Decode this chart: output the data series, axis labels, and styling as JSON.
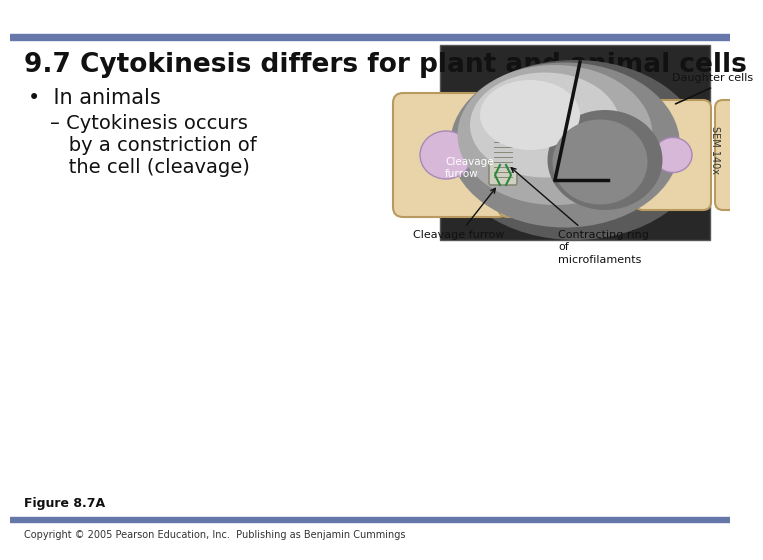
{
  "title": "9.7 Cytokinesis differs for plant and animal cells",
  "bullet_main": "In animals",
  "bullet_sub": "– Cytokinesis occurs\n   by a constriction of\n   the cell (cleavage)",
  "header_bar_color": "#6677aa",
  "footer_bar_color": "#6677aa",
  "bg_color": "#ffffff",
  "title_color": "#111111",
  "text_color": "#111111",
  "figure_label": "Figure 8.7A",
  "copyright": "Copyright © 2005 Pearson Education, Inc.  Publishing as Benjamin Cummings",
  "sem_label": "SEM 140x",
  "cleavage_label_photo": "Cleavage\nfurrow",
  "cleavage_label_diagram": "Cleavage furrow",
  "contracting_label": "Contracting ring\nof\nmicrofilaments",
  "daughter_label": "Daughter cells",
  "arrow_color": "#2a8a3a",
  "cell_fill": "#e8d4a8",
  "cell_edge": "#b89a60",
  "nucleus_fill": "#d8b8d8",
  "nucleus_edge": "#a888b8",
  "ring_fill": "#d0d0c0",
  "ring_edge": "#888878"
}
